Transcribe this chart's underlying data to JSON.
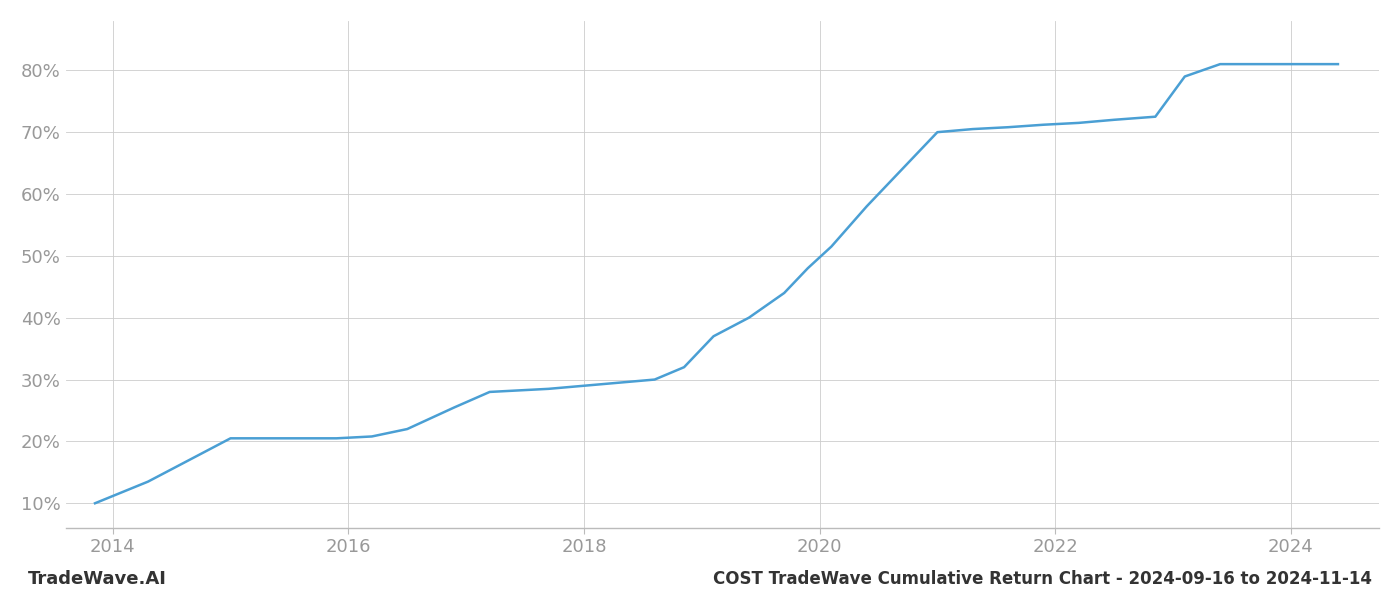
{
  "x_values": [
    2013.85,
    2014.3,
    2014.75,
    2015.0,
    2015.5,
    2015.9,
    2016.2,
    2016.5,
    2016.9,
    2017.2,
    2017.7,
    2018.0,
    2018.3,
    2018.6,
    2018.85,
    2019.1,
    2019.4,
    2019.7,
    2019.9,
    2020.1,
    2020.4,
    2020.7,
    2021.0,
    2021.3,
    2021.6,
    2021.9,
    2022.2,
    2022.5,
    2022.85,
    2023.1,
    2023.4,
    2023.7,
    2024.0,
    2024.4
  ],
  "y_values": [
    10,
    13.5,
    18,
    20.5,
    20.5,
    20.5,
    20.8,
    22,
    25.5,
    28,
    28.5,
    29,
    29.5,
    30,
    32,
    37,
    40,
    44,
    48,
    51.5,
    58,
    64,
    70,
    70.5,
    70.8,
    71.2,
    71.5,
    72,
    72.5,
    79,
    81,
    81,
    81,
    81
  ],
  "line_color": "#4a9fd4",
  "line_width": 1.8,
  "background_color": "#ffffff",
  "grid_color": "#cccccc",
  "title": "COST TradeWave Cumulative Return Chart - 2024-09-16 to 2024-11-14",
  "watermark": "TradeWave.AI",
  "xlim": [
    2013.6,
    2024.75
  ],
  "ylim": [
    6,
    88
  ],
  "yticks": [
    10,
    20,
    30,
    40,
    50,
    60,
    70,
    80
  ],
  "xticks": [
    2014,
    2016,
    2018,
    2020,
    2022,
    2024
  ],
  "tick_label_color": "#999999",
  "title_color": "#333333",
  "watermark_color": "#333333",
  "spine_color": "#bbbbbb",
  "tick_fontsize": 13,
  "title_fontsize": 12,
  "watermark_fontsize": 13
}
